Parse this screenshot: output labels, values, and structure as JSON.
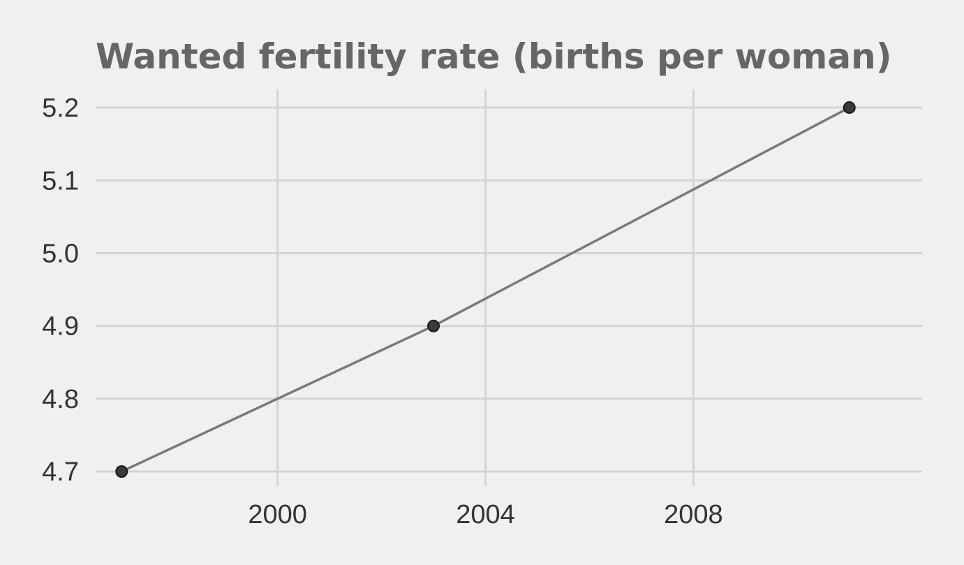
{
  "chart_data": {
    "type": "line",
    "title": "Wanted fertility rate (births per woman)",
    "xlabel": "",
    "ylabel": "",
    "x": [
      1997,
      2003,
      2011
    ],
    "series": [
      {
        "values": [
          4.7,
          4.9,
          5.2
        ]
      }
    ],
    "xlim": [
      1996.5,
      2012.4
    ],
    "ylim": [
      4.68,
      5.225
    ],
    "x_ticks": [
      2000,
      2004,
      2008
    ],
    "x_tick_labels": [
      "2000",
      "2004",
      "2008"
    ],
    "y_ticks": [
      4.7,
      4.8,
      4.9,
      5.0,
      5.1,
      5.2
    ],
    "y_tick_labels": [
      "4.7",
      "4.8",
      "4.9",
      "5.0",
      "5.1",
      "5.2"
    ],
    "grid": true,
    "legend": "none",
    "colors": {
      "background": "#f0f0f0",
      "grid": "#d4d4d4",
      "line": "#7a7a7a",
      "point": "#3a3a3a",
      "title": "#666666",
      "tick_text": "#333333"
    }
  }
}
